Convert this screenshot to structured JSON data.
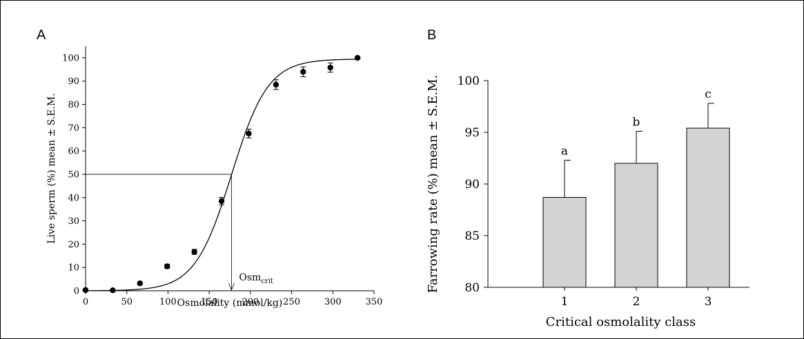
{
  "panels": {
    "a": {
      "letter": "A"
    },
    "b": {
      "letter": "B"
    }
  },
  "chart_data": [
    {
      "type": "scatter",
      "panel": "A",
      "xlabel": "Osmolality (mmol/kg)",
      "ylabel": "Live sperm (%) mean ± S.E.M.",
      "xlim": [
        0,
        350
      ],
      "ylim": [
        0,
        105
      ],
      "xticks": [
        0,
        50,
        100,
        150,
        200,
        250,
        300,
        350
      ],
      "yticks": [
        0,
        10,
        20,
        30,
        40,
        50,
        60,
        70,
        80,
        90,
        100
      ],
      "points": [
        {
          "x": 0,
          "y": 0.3,
          "err": 0.3
        },
        {
          "x": 33,
          "y": 0.2,
          "err": 0.3
        },
        {
          "x": 66,
          "y": 3.2,
          "err": 0.6
        },
        {
          "x": 99,
          "y": 10.5,
          "err": 0.9
        },
        {
          "x": 132,
          "y": 16.7,
          "err": 1.1
        },
        {
          "x": 165,
          "y": 38.5,
          "err": 1.6
        },
        {
          "x": 198,
          "y": 67.5,
          "err": 1.9
        },
        {
          "x": 231,
          "y": 88.5,
          "err": 2.1
        },
        {
          "x": 264,
          "y": 94.0,
          "err": 2.1
        },
        {
          "x": 297,
          "y": 95.8,
          "err": 2.0
        },
        {
          "x": 330,
          "y": 100.0,
          "err": 0.4
        }
      ],
      "fit": {
        "midpoint": 177,
        "slope": 0.045,
        "top": 99.5
      },
      "reference": {
        "y": 50,
        "x": 177
      },
      "annotation": {
        "text": "Osm",
        "subscript": "crit",
        "x": 177
      }
    },
    {
      "type": "bar",
      "panel": "B",
      "xlabel": "Critical osmolality class",
      "ylabel": "Farrowing rate (%) mean ± S.E.M.",
      "ylim": [
        80,
        100
      ],
      "yticks": [
        80,
        85,
        90,
        95,
        100
      ],
      "categories": [
        "1",
        "2",
        "3"
      ],
      "values": [
        88.7,
        92.0,
        95.4
      ],
      "errors": [
        3.6,
        3.1,
        2.4
      ],
      "significance": [
        "a",
        "b",
        "c"
      ],
      "color": "#d3d3d3"
    }
  ]
}
